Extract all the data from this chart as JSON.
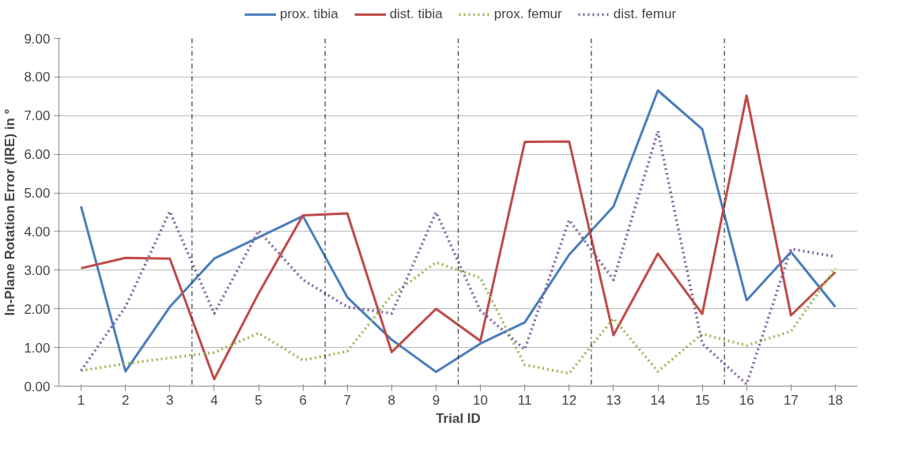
{
  "chart_data": {
    "type": "line",
    "xlabel": "Trial ID",
    "ylabel": "In-Plane Rotation Error (IRE) in °",
    "x": [
      1,
      2,
      3,
      4,
      5,
      6,
      7,
      8,
      9,
      10,
      11,
      12,
      13,
      14,
      15,
      16,
      17,
      18
    ],
    "xlim": [
      0.5,
      18.5
    ],
    "xticks": [
      1,
      2,
      3,
      4,
      5,
      6,
      7,
      8,
      9,
      10,
      11,
      12,
      13,
      14,
      15,
      16,
      17,
      18
    ],
    "ylim": [
      0,
      9
    ],
    "yticks": [
      {
        "value": 0,
        "label": "0.00"
      },
      {
        "value": 1,
        "label": "1.00"
      },
      {
        "value": 2,
        "label": "2.00"
      },
      {
        "value": 3,
        "label": "3.00"
      },
      {
        "value": 4,
        "label": "4.00"
      },
      {
        "value": 5,
        "label": "5.00"
      },
      {
        "value": 6,
        "label": "6.00"
      },
      {
        "value": 7,
        "label": "7.00"
      },
      {
        "value": 8,
        "label": "8.00"
      },
      {
        "value": 9,
        "label": "9.00"
      }
    ],
    "grid": "y",
    "legend": "top",
    "marker": "none",
    "series": [
      {
        "name": "prox. tibia",
        "color": "#4a7ebb",
        "line_style": "solid",
        "values": [
          4.65,
          0.38,
          2.05,
          3.3,
          3.85,
          4.4,
          2.3,
          1.2,
          0.37,
          1.1,
          1.65,
          3.4,
          4.65,
          7.65,
          6.65,
          2.22,
          3.47,
          2.05
        ]
      },
      {
        "name": "dist. tibia",
        "color": "#be4b48",
        "line_style": "solid",
        "values": [
          3.05,
          3.32,
          3.3,
          0.18,
          2.4,
          4.42,
          4.47,
          0.88,
          2.0,
          1.17,
          6.32,
          6.33,
          1.32,
          3.43,
          1.87,
          7.52,
          1.83,
          2.95
        ]
      },
      {
        "name": "prox. femur",
        "color": "#98b954",
        "line_style": "dotted",
        "values": [
          0.4,
          0.58,
          0.73,
          0.87,
          1.37,
          0.67,
          0.9,
          2.35,
          3.2,
          2.8,
          0.55,
          0.33,
          1.75,
          0.38,
          1.35,
          1.05,
          1.42,
          3.05
        ]
      },
      {
        "name": "dist. femur",
        "color": "#7d60a0",
        "line_style": "dotted",
        "values": [
          0.4,
          2.05,
          4.52,
          1.88,
          4.02,
          2.75,
          2.05,
          1.88,
          4.5,
          1.95,
          0.95,
          4.3,
          2.75,
          6.6,
          1.1,
          0.05,
          3.55,
          3.35
        ]
      }
    ],
    "ref_lines": [
      {
        "axis": "x",
        "value": 3.5,
        "color": "#333333",
        "line_style": "dashed"
      },
      {
        "axis": "x",
        "value": 6.5,
        "color": "#333333",
        "line_style": "dashed"
      },
      {
        "axis": "x",
        "value": 9.5,
        "color": "#333333",
        "line_style": "dashed"
      },
      {
        "axis": "x",
        "value": 12.5,
        "color": "#333333",
        "line_style": "dashed"
      },
      {
        "axis": "x",
        "value": 15.5,
        "color": "#333333",
        "line_style": "dashed"
      }
    ]
  }
}
